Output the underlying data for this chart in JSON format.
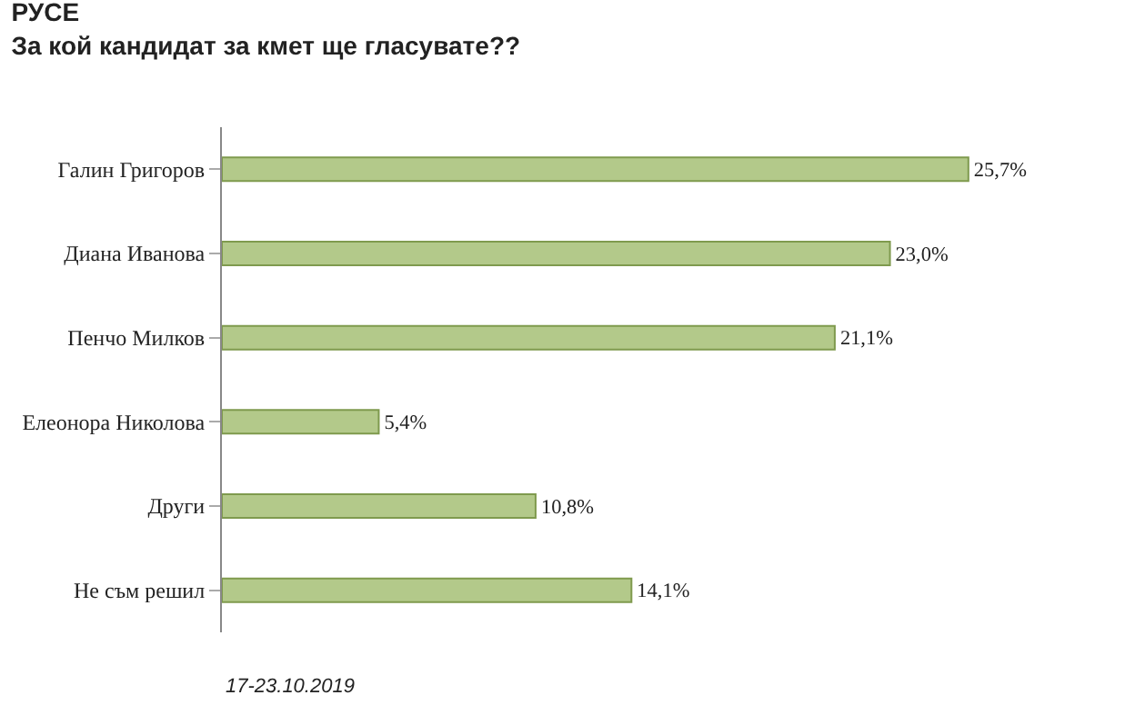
{
  "chart_data": {
    "type": "bar",
    "orientation": "horizontal",
    "title": "РУСЕ",
    "subtitle": "За кой кандидат за кмет ще гласувате??",
    "categories": [
      "Галин Григоров",
      "Диана Иванова",
      "Пенчо Милков",
      "Елеонора Николова",
      "Други",
      "Не съм решил"
    ],
    "values": [
      25.7,
      23.0,
      21.1,
      5.4,
      10.8,
      14.1
    ],
    "value_labels": [
      "25,7%",
      "23,0%",
      "21,1%",
      "5,4%",
      "10,8%",
      "14,1%"
    ],
    "color": "#b3c98a",
    "annotations": [
      "17-23.10.2019"
    ]
  }
}
